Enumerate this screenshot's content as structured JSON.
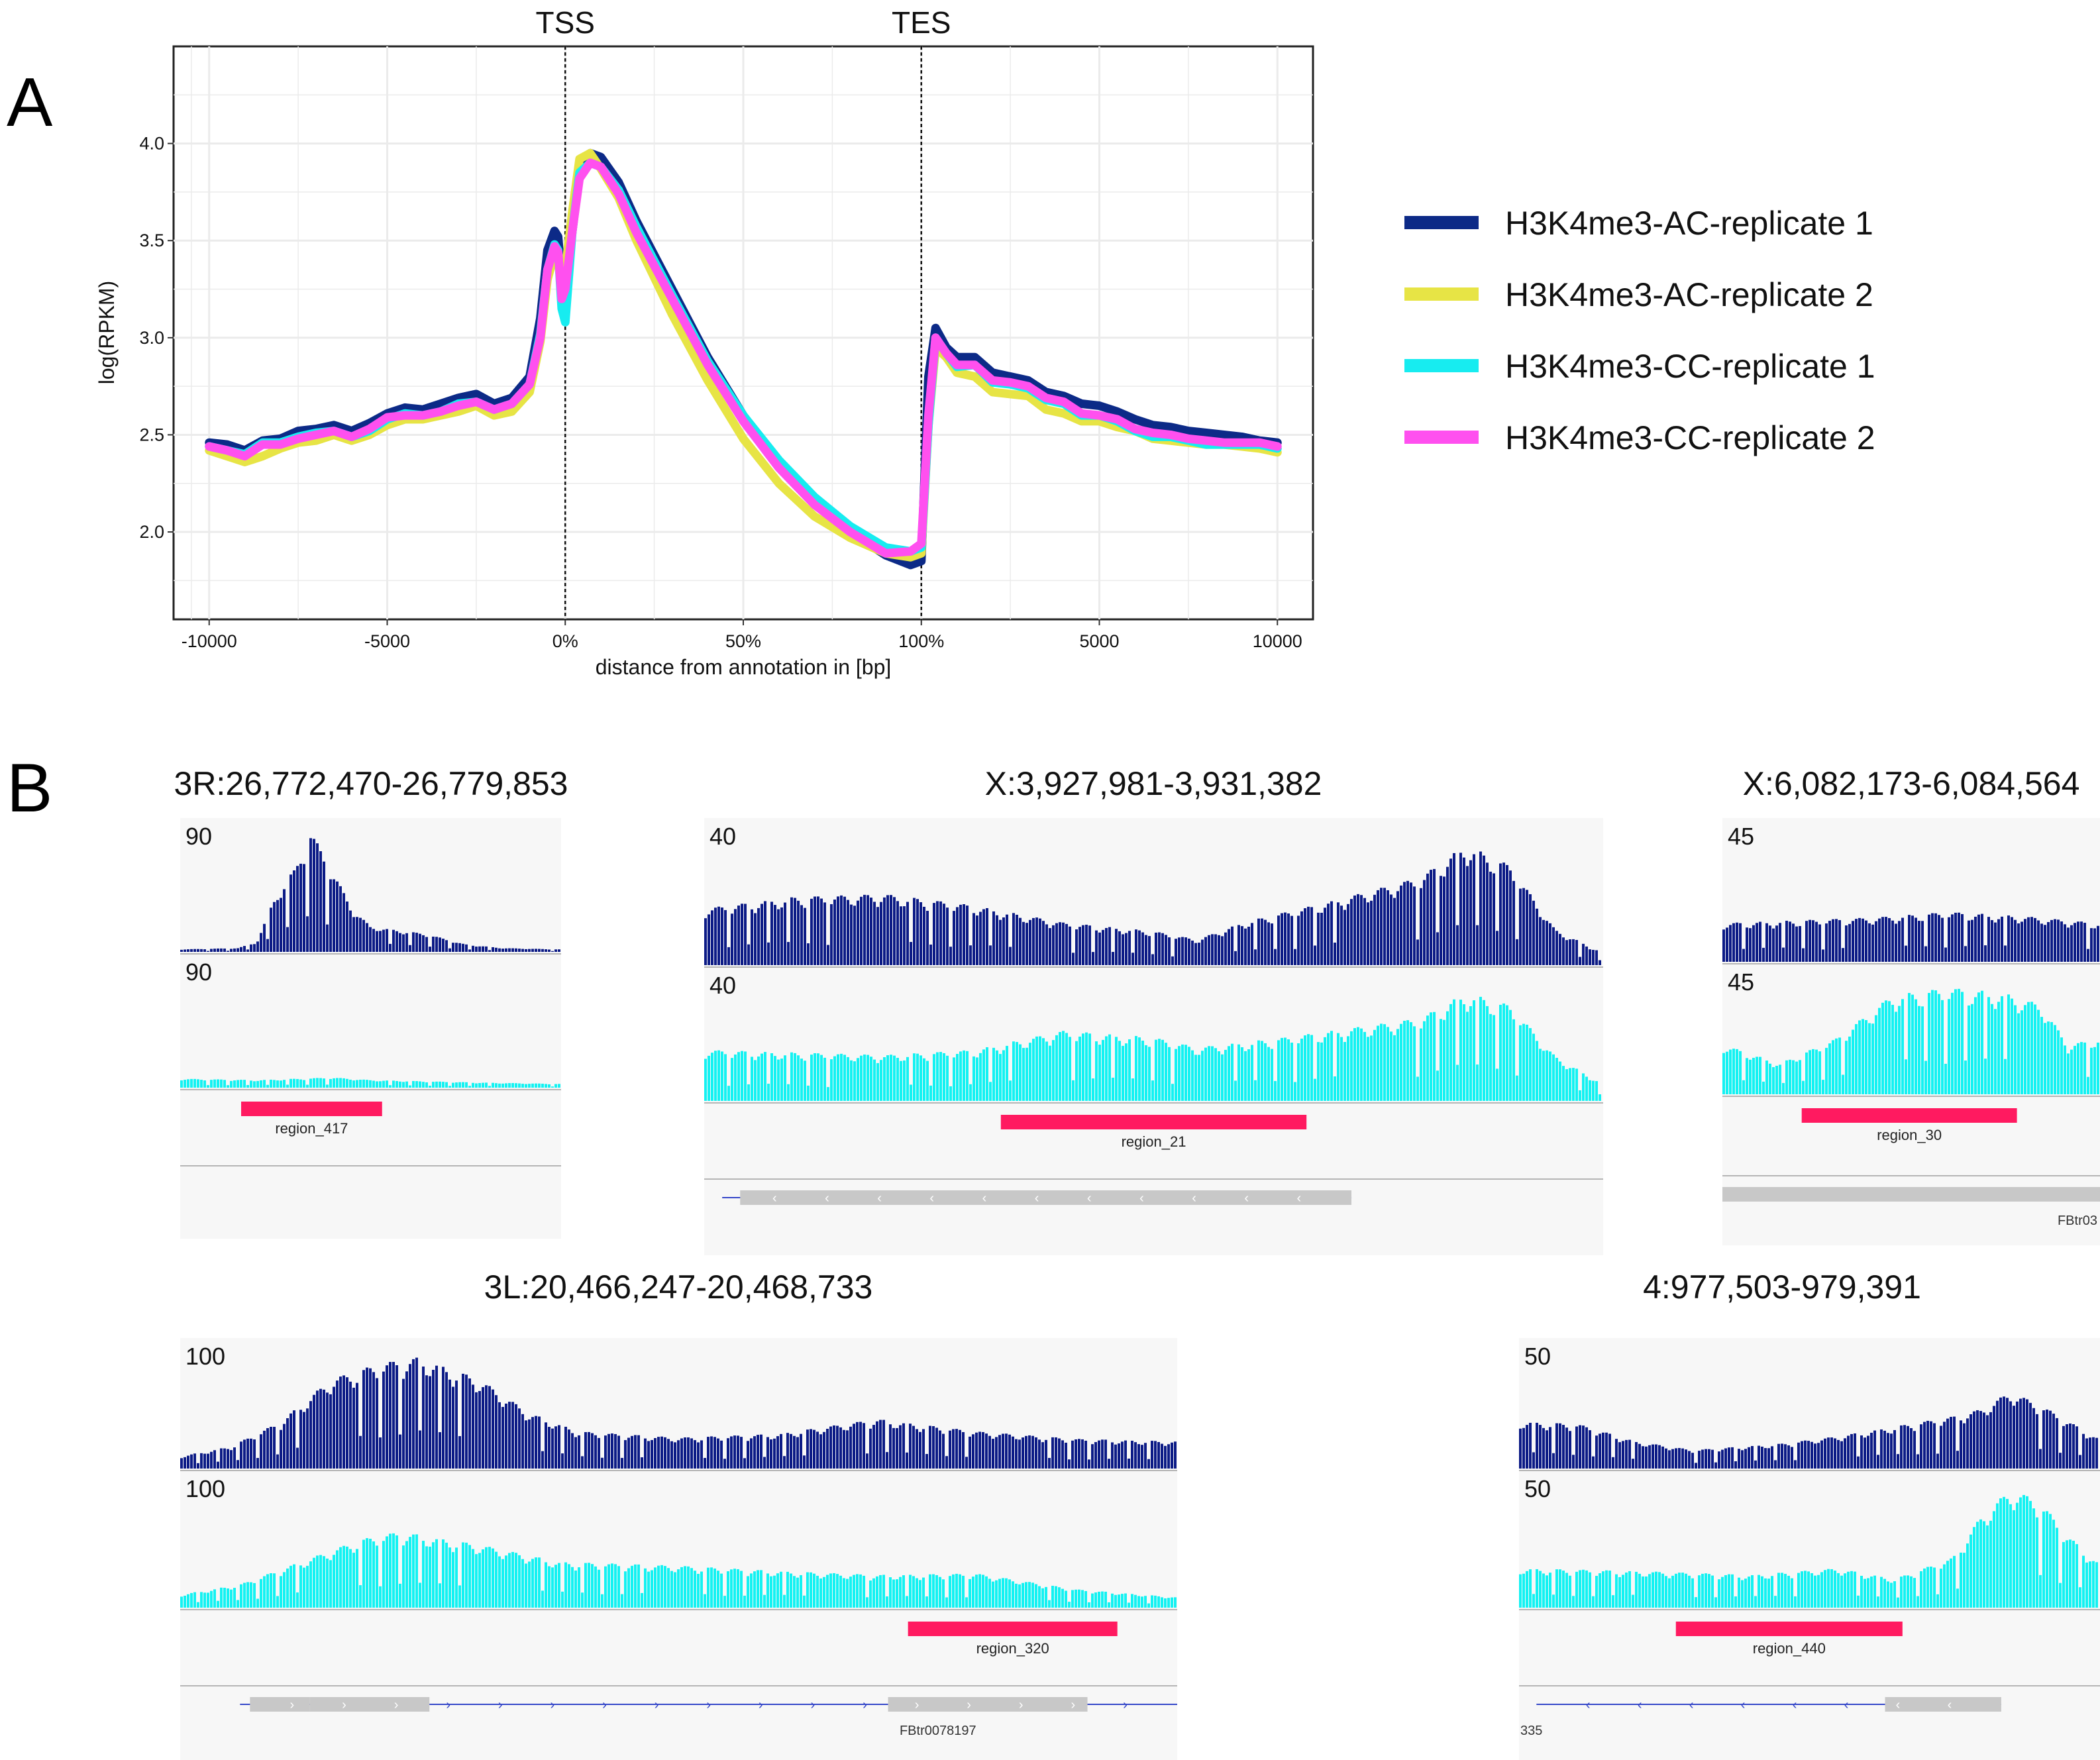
{
  "panels": {
    "a_label": "A",
    "b_label": "B"
  },
  "chart_data": [
    {
      "type": "line",
      "title": "",
      "xlabel": "distance from annotation in [bp]",
      "ylabel": "log(RPKM)",
      "x_domain": [
        -1.1,
        2.1
      ],
      "ylim": [
        1.55,
        4.5
      ],
      "x_ticks": [
        {
          "pos": -1.0,
          "label": "-10000"
        },
        {
          "pos": -0.5,
          "label": "-5000"
        },
        {
          "pos": 0.0,
          "label": "0%"
        },
        {
          "pos": 0.5,
          "label": "50%"
        },
        {
          "pos": 1.0,
          "label": "100%"
        },
        {
          "pos": 1.5,
          "label": "5000"
        },
        {
          "pos": 2.0,
          "label": "10000"
        }
      ],
      "y_ticks": [
        {
          "value": 2.0,
          "label": "2.0"
        },
        {
          "value": 2.5,
          "label": "2.5"
        },
        {
          "value": 3.0,
          "label": "3.0"
        },
        {
          "value": 3.5,
          "label": "3.5"
        },
        {
          "value": 4.0,
          "label": "4.0"
        }
      ],
      "markers": [
        {
          "pos": 0.0,
          "label": "TSS"
        },
        {
          "pos": 1.0,
          "label": "TES"
        }
      ],
      "grid": true,
      "legend_position": "right",
      "x": [
        -1.0,
        -0.95,
        -0.9,
        -0.85,
        -0.8,
        -0.75,
        -0.7,
        -0.65,
        -0.6,
        -0.55,
        -0.5,
        -0.45,
        -0.4,
        -0.35,
        -0.3,
        -0.25,
        -0.2,
        -0.15,
        -0.1,
        -0.07,
        -0.05,
        -0.03,
        -0.02,
        -0.01,
        0.0,
        0.02,
        0.04,
        0.07,
        0.1,
        0.15,
        0.2,
        0.3,
        0.4,
        0.5,
        0.6,
        0.7,
        0.8,
        0.9,
        0.97,
        1.0,
        1.02,
        1.04,
        1.07,
        1.1,
        1.15,
        1.2,
        1.25,
        1.3,
        1.35,
        1.4,
        1.45,
        1.5,
        1.55,
        1.6,
        1.65,
        1.7,
        1.75,
        1.8,
        1.85,
        1.9,
        1.95,
        2.0
      ],
      "series": [
        {
          "name": "H3K4me3-AC-replicate 1",
          "color": "#0c2a87",
          "values": [
            2.46,
            2.45,
            2.42,
            2.47,
            2.48,
            2.52,
            2.53,
            2.55,
            2.52,
            2.56,
            2.61,
            2.64,
            2.63,
            2.66,
            2.69,
            2.71,
            2.66,
            2.69,
            2.8,
            3.1,
            3.45,
            3.55,
            3.52,
            3.3,
            3.25,
            3.55,
            3.85,
            3.95,
            3.93,
            3.8,
            3.6,
            3.25,
            2.9,
            2.6,
            2.35,
            2.15,
            2.0,
            1.88,
            1.83,
            1.85,
            2.8,
            3.05,
            2.95,
            2.9,
            2.9,
            2.82,
            2.8,
            2.78,
            2.72,
            2.7,
            2.66,
            2.65,
            2.62,
            2.58,
            2.55,
            2.54,
            2.52,
            2.51,
            2.5,
            2.49,
            2.47,
            2.46
          ]
        },
        {
          "name": "H3K4me3-AC-replicate 2",
          "color": "#e7e445",
          "values": [
            2.42,
            2.39,
            2.36,
            2.39,
            2.43,
            2.46,
            2.47,
            2.5,
            2.47,
            2.5,
            2.55,
            2.58,
            2.58,
            2.6,
            2.62,
            2.65,
            2.6,
            2.62,
            2.72,
            2.98,
            3.3,
            3.43,
            3.42,
            3.22,
            3.35,
            3.65,
            3.92,
            3.95,
            3.87,
            3.72,
            3.5,
            3.12,
            2.78,
            2.48,
            2.25,
            2.08,
            1.97,
            1.89,
            1.87,
            1.89,
            2.55,
            2.95,
            2.9,
            2.82,
            2.8,
            2.72,
            2.71,
            2.7,
            2.63,
            2.61,
            2.57,
            2.57,
            2.54,
            2.52,
            2.48,
            2.47,
            2.46,
            2.45,
            2.45,
            2.44,
            2.43,
            2.41
          ]
        },
        {
          "name": "H3K4me3-CC-replicate 1",
          "color": "#17ecf0",
          "values": [
            2.44,
            2.42,
            2.4,
            2.46,
            2.46,
            2.49,
            2.51,
            2.52,
            2.49,
            2.52,
            2.58,
            2.61,
            2.6,
            2.62,
            2.66,
            2.67,
            2.63,
            2.66,
            2.76,
            3.02,
            3.35,
            3.48,
            3.45,
            3.15,
            3.08,
            3.55,
            3.85,
            3.9,
            3.88,
            3.76,
            3.57,
            3.22,
            2.88,
            2.6,
            2.37,
            2.18,
            2.03,
            1.92,
            1.9,
            1.92,
            2.55,
            3.0,
            2.92,
            2.85,
            2.86,
            2.77,
            2.76,
            2.74,
            2.68,
            2.66,
            2.6,
            2.6,
            2.57,
            2.52,
            2.49,
            2.49,
            2.47,
            2.45,
            2.45,
            2.45,
            2.45,
            2.43
          ]
        },
        {
          "name": "H3K4me3-CC-replicate 2",
          "color": "#ff50ef",
          "values": [
            2.44,
            2.42,
            2.39,
            2.45,
            2.45,
            2.48,
            2.5,
            2.52,
            2.49,
            2.53,
            2.59,
            2.6,
            2.6,
            2.62,
            2.65,
            2.67,
            2.63,
            2.66,
            2.76,
            3.0,
            3.35,
            3.47,
            3.44,
            3.2,
            3.25,
            3.55,
            3.82,
            3.9,
            3.88,
            3.74,
            3.54,
            3.2,
            2.86,
            2.57,
            2.33,
            2.14,
            2.0,
            1.89,
            1.9,
            1.94,
            2.6,
            3.0,
            2.92,
            2.86,
            2.86,
            2.78,
            2.77,
            2.75,
            2.69,
            2.67,
            2.61,
            2.6,
            2.58,
            2.53,
            2.51,
            2.5,
            2.48,
            2.47,
            2.46,
            2.46,
            2.46,
            2.44
          ]
        }
      ]
    },
    {
      "type": "bar",
      "title": "3R:26,772,470-26,779,853",
      "subtracks": [
        {
          "name": "AC",
          "color": "#0c1b86",
          "max": 90,
          "max_label": "90",
          "shape": [
            [
              0,
              2
            ],
            [
              0.15,
              3
            ],
            [
              0.2,
              8
            ],
            [
              0.25,
              45
            ],
            [
              0.3,
              65
            ],
            [
              0.34,
              95
            ],
            [
              0.38,
              75
            ],
            [
              0.45,
              35
            ],
            [
              0.5,
              20
            ],
            [
              0.55,
              18
            ],
            [
              0.65,
              14
            ],
            [
              0.75,
              6
            ],
            [
              0.85,
              3
            ],
            [
              1,
              2
            ]
          ]
        },
        {
          "name": "CC",
          "color": "#14f2f2",
          "max": 90,
          "max_label": "90",
          "shape": [
            [
              0,
              7
            ],
            [
              0.2,
              6
            ],
            [
              0.4,
              8
            ],
            [
              0.5,
              6
            ],
            [
              0.8,
              4
            ],
            [
              1,
              3
            ]
          ]
        }
      ],
      "regions": [
        {
          "label": "region_417",
          "start": 0.16,
          "end": 0.53
        }
      ],
      "gene": null
    },
    {
      "type": "bar",
      "title": "X:3,927,981-3,931,382",
      "subtracks": [
        {
          "name": "AC",
          "color": "#0c1b86",
          "max": 40,
          "max_label": "40",
          "shape": [
            [
              0,
              40
            ],
            [
              0.1,
              48
            ],
            [
              0.2,
              50
            ],
            [
              0.3,
              42
            ],
            [
              0.4,
              30
            ],
            [
              0.5,
              24
            ],
            [
              0.55,
              18
            ],
            [
              0.6,
              30
            ],
            [
              0.7,
              45
            ],
            [
              0.8,
              62
            ],
            [
              0.85,
              85
            ],
            [
              0.9,
              70
            ],
            [
              0.95,
              25
            ],
            [
              1,
              10
            ]
          ]
        },
        {
          "name": "CC",
          "color": "#14f2f2",
          "max": 40,
          "max_label": "40",
          "shape": [
            [
              0,
              40
            ],
            [
              0.1,
              38
            ],
            [
              0.2,
              36
            ],
            [
              0.3,
              40
            ],
            [
              0.4,
              55
            ],
            [
              0.5,
              50
            ],
            [
              0.55,
              42
            ],
            [
              0.65,
              50
            ],
            [
              0.75,
              60
            ],
            [
              0.8,
              65
            ],
            [
              0.85,
              85
            ],
            [
              0.9,
              75
            ],
            [
              0.95,
              35
            ],
            [
              1,
              15
            ]
          ]
        }
      ],
      "regions": [
        {
          "label": "region_21",
          "start": 0.33,
          "end": 0.67
        }
      ],
      "gene": {
        "label": "",
        "start": 0.02,
        "end": 0.72,
        "direction": "left",
        "exons": [
          [
            0.04,
            0.72
          ]
        ]
      }
    },
    {
      "type": "bar",
      "title": "X:6,082,173-6,084,564",
      "subtracks": [
        {
          "name": "AC",
          "color": "#0c1b86",
          "max": 45,
          "max_label": "45",
          "shape": [
            [
              0,
              28
            ],
            [
              0.2,
              30
            ],
            [
              0.4,
              32
            ],
            [
              0.6,
              36
            ],
            [
              0.8,
              33
            ],
            [
              1,
              28
            ]
          ]
        },
        {
          "name": "CC",
          "color": "#14f2f2",
          "max": 45,
          "max_label": "45",
          "shape": [
            [
              0,
              40
            ],
            [
              0.15,
              25
            ],
            [
              0.3,
              45
            ],
            [
              0.45,
              80
            ],
            [
              0.6,
              86
            ],
            [
              0.75,
              82
            ],
            [
              0.85,
              72
            ],
            [
              0.92,
              40
            ],
            [
              1,
              45
            ]
          ]
        }
      ],
      "regions": [
        {
          "label": "region_30",
          "start": 0.21,
          "end": 0.78
        }
      ],
      "gene": {
        "label": "FBtr03",
        "start": 0.0,
        "end": 1.0,
        "direction": "none",
        "exons": [
          [
            0.0,
            1.0
          ]
        ]
      }
    },
    {
      "type": "bar",
      "title": "3L:20,466,247-20,468,733",
      "subtracks": [
        {
          "name": "AC",
          "color": "#0c1b86",
          "max": 100,
          "max_label": "100",
          "shape": [
            [
              0,
              10
            ],
            [
              0.05,
              18
            ],
            [
              0.1,
              38
            ],
            [
              0.15,
              72
            ],
            [
              0.2,
              85
            ],
            [
              0.24,
              90
            ],
            [
              0.3,
              72
            ],
            [
              0.35,
              45
            ],
            [
              0.4,
              30
            ],
            [
              0.5,
              25
            ],
            [
              0.6,
              28
            ],
            [
              0.7,
              40
            ],
            [
              0.8,
              30
            ],
            [
              0.9,
              24
            ],
            [
              1,
              22
            ]
          ]
        },
        {
          "name": "CC",
          "color": "#14f2f2",
          "max": 100,
          "max_label": "100",
          "shape": [
            [
              0,
              10
            ],
            [
              0.06,
              18
            ],
            [
              0.12,
              35
            ],
            [
              0.18,
              52
            ],
            [
              0.22,
              58
            ],
            [
              0.3,
              48
            ],
            [
              0.38,
              35
            ],
            [
              0.5,
              32
            ],
            [
              0.6,
              28
            ],
            [
              0.7,
              25
            ],
            [
              0.8,
              26
            ],
            [
              0.9,
              14
            ],
            [
              1,
              8
            ]
          ]
        }
      ],
      "regions": [
        {
          "label": "region_320",
          "start": 0.73,
          "end": 0.94
        }
      ],
      "gene": {
        "label": "FBtr0078197",
        "start": 0.06,
        "end": 1.0,
        "direction": "right",
        "exons": [
          [
            0.07,
            0.13
          ],
          [
            0.13,
            0.25
          ],
          [
            0.71,
            0.91
          ]
        ]
      }
    },
    {
      "type": "bar",
      "title": "4:977,503-979,391",
      "subtracks": [
        {
          "name": "AC",
          "color": "#0c1b86",
          "max": 50,
          "max_label": "50",
          "shape": [
            [
              0,
              38
            ],
            [
              0.1,
              36
            ],
            [
              0.2,
              22
            ],
            [
              0.3,
              15
            ],
            [
              0.45,
              20
            ],
            [
              0.55,
              26
            ],
            [
              0.65,
              34
            ],
            [
              0.75,
              42
            ],
            [
              0.8,
              48
            ],
            [
              0.85,
              62
            ],
            [
              0.9,
              52
            ],
            [
              1,
              25
            ]
          ]
        },
        {
          "name": "CC",
          "color": "#14f2f2",
          "max": 50,
          "max_label": "50",
          "shape": [
            [
              0,
              30
            ],
            [
              0.2,
              28
            ],
            [
              0.4,
              25
            ],
            [
              0.55,
              30
            ],
            [
              0.65,
              22
            ],
            [
              0.75,
              38
            ],
            [
              0.8,
              70
            ],
            [
              0.85,
              90
            ],
            [
              0.9,
              82
            ],
            [
              0.95,
              55
            ],
            [
              1,
              35
            ]
          ]
        }
      ],
      "regions": [
        {
          "label": "region_440",
          "start": 0.27,
          "end": 0.66
        }
      ],
      "gene": {
        "label": "335",
        "start": 0.03,
        "end": 0.83,
        "direction": "left",
        "exons": [
          [
            0.63,
            0.83
          ]
        ]
      }
    }
  ]
}
